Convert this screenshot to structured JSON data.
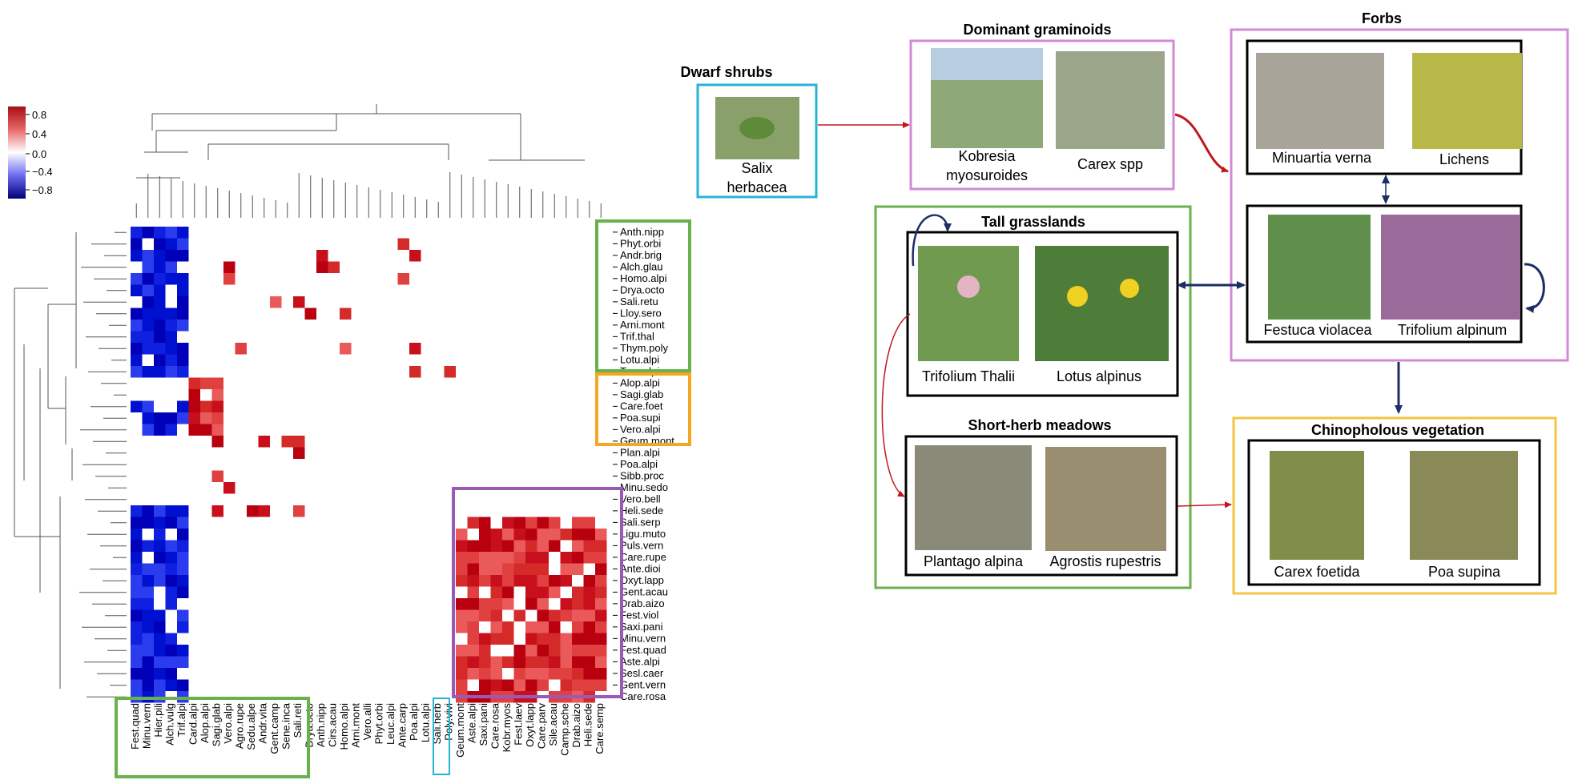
{
  "heatmap": {
    "colorbar": {
      "ticks": [
        "0.8",
        "0.4",
        "0.0",
        "−0.4",
        "−0.8"
      ]
    },
    "row_labels": [
      "Anth.nipp",
      "Phyt.orbi",
      "Andr.brig",
      "Alch.glau",
      "Homo.alpi",
      "Drya.octo",
      "Sali.retu",
      "Lloy.sero",
      "Arni.mont",
      "Trif.thal",
      "Thym.poly",
      "Lotu.alpi",
      "Tara.alpi",
      "Alop.alpi",
      "Sagi.glab",
      "Care.foet",
      "Poa.supi",
      "Vero.alpi",
      "Geum.mont",
      "Plan.alpi",
      "Poa.alpi",
      "Sibb.proc",
      "Minu.sedo",
      "Vero.bell",
      "Heli.sede",
      "Sali.serp",
      "Ligu.muto",
      "Puls.vern",
      "Care.rupe",
      "Ante.dioi",
      "Oxyt.lapp",
      "Gent.acau",
      "Drab.aizo",
      "Fest.viol",
      "Saxi.pani",
      "Minu.vern",
      "Fest.quad",
      "Aste.alpi",
      "Sesl.caer",
      "Gent.vern",
      "Care.rosa"
    ],
    "col_labels": [
      "Fest.quad",
      "Minu.vern",
      "Hier.pili",
      "Alch.vulg",
      "Trif.alpi",
      "Card.alpi",
      "Alop.alpi",
      "Sagi.glab",
      "Vero.alpi",
      "Agro.rupe",
      "Sedu.alpe",
      "Andr.vita",
      "Gent.camp",
      "Sene.inca",
      "Sali.reti",
      "Drya.octo",
      "Anth.nipp",
      "Cirs.acau",
      "Homo.alpi",
      "Arni.mont",
      "Vero.alli",
      "Phyt.orbi",
      "Leuc.alpi",
      "Ante.carp",
      "Poa.alpi",
      "Lotu.alpi",
      "Sali.herb",
      "Poly.vivi",
      "Geum.mont",
      "Aste.alpi",
      "Saxi.pani",
      "Care.rosa",
      "Kobr.myos",
      "Fest.laev",
      "Oxyt.lapp",
      "Care.parv",
      "Sile.acau",
      "Camp.sche",
      "Drab.aizo",
      "Heli.sede",
      "Care.semp"
    ]
  },
  "diagram": {
    "dwarf_shrubs": {
      "title": "Dwarf shrubs",
      "species": [
        {
          "line1": "Salix",
          "line2": "herbacea"
        }
      ]
    },
    "dominant_graminoids": {
      "title": "Dominant graminoids",
      "species": [
        {
          "line1": "Kobresia",
          "line2": "myosuroides"
        },
        {
          "line1": "Carex spp",
          "line2": ""
        }
      ]
    },
    "forbs": {
      "title": "Forbs",
      "species": [
        "Minuartia verna",
        "Lichens",
        "Festuca violacea",
        "Trifolium alpinum"
      ]
    },
    "tall_grasslands": {
      "title": "Tall   grasslands",
      "species": [
        "Trifolium Thalii",
        "Lotus alpinus"
      ]
    },
    "short_herb_meadows": {
      "title": "Short-herb meadows",
      "species": [
        "Plantago alpina",
        "Agrostis rupestris"
      ]
    },
    "chinophilous": {
      "title": "Chinopholous vegetation",
      "species": [
        "Carex foetida",
        "Poa supina"
      ]
    }
  },
  "colors": {
    "green": "#6ab04c",
    "orange": "#f5a623",
    "purple": "#9b59b6",
    "cyan": "#27b3d6",
    "pink": "#d28ad6",
    "yellow": "#f6c343",
    "navy": "#1c2e66",
    "red": "#c0181d"
  }
}
